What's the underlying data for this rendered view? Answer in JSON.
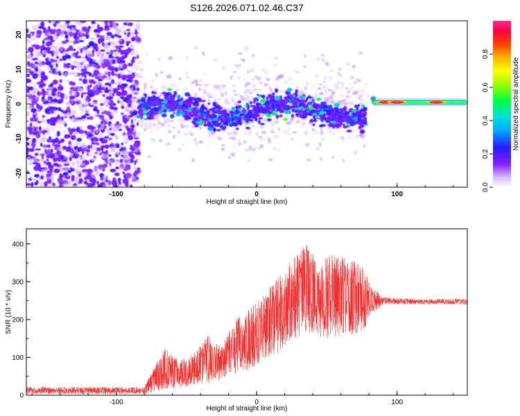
{
  "figure_title": "S126.2026.071.02.46.C37",
  "colors": {
    "trace": "#f03030",
    "frame": "#000000",
    "background": "#ffffff"
  },
  "chart_data": [
    {
      "type": "heatmap",
      "title": "S126.2026.071.02.46.C37",
      "xlabel": "Height of straight line (km)",
      "ylabel": "Frequency (Hz)",
      "xlim": [
        -164,
        150
      ],
      "ylim": [
        -24,
        24
      ],
      "xticks": [
        -100,
        0,
        100
      ],
      "yticks": [
        20,
        10,
        0,
        -10,
        -20
      ],
      "description_points": {
        "noise_region_x": [
          -164,
          -84
        ],
        "active_region_x": [
          -84,
          78
        ],
        "tone_region_x": [
          78,
          150
        ],
        "tone_frequency_hz": 0.5,
        "peak_positions_x": [
          92,
          100,
          128
        ]
      },
      "colorbar": {
        "label": "Normalized spectral amplitude",
        "range": [
          0.0,
          1.0
        ],
        "ticks": [
          0.0,
          0.2,
          0.4,
          0.6,
          0.8
        ],
        "tick_labels": [
          "0.0",
          "0.2",
          "0.4",
          "0.6",
          "0.8"
        ]
      }
    },
    {
      "type": "line",
      "xlabel": "Height of straight line (km)",
      "ylabel": "SNR (10 * v/v)",
      "xlim": [
        -164,
        150
      ],
      "ylim": [
        0,
        440
      ],
      "xticks": [
        -100,
        0,
        100
      ],
      "yticks": [
        0,
        100,
        200,
        300,
        400
      ],
      "series": [
        {
          "name": "SNR",
          "envelope_x": [
            -164,
            -80,
            -75,
            -65,
            -55,
            -45,
            -35,
            -25,
            -15,
            -5,
            5,
            15,
            25,
            35,
            45,
            55,
            65,
            75,
            82,
            90,
            110,
            130,
            150
          ],
          "envelope_low": [
            3,
            3,
            6,
            15,
            20,
            25,
            30,
            40,
            55,
            70,
            90,
            110,
            140,
            160,
            150,
            150,
            160,
            160,
            210,
            240,
            240,
            240,
            240
          ],
          "envelope_high": [
            22,
            22,
            60,
            125,
            90,
            110,
            160,
            130,
            200,
            230,
            270,
            310,
            360,
            400,
            350,
            380,
            360,
            350,
            290,
            260,
            255,
            255,
            255
          ]
        }
      ]
    }
  ]
}
